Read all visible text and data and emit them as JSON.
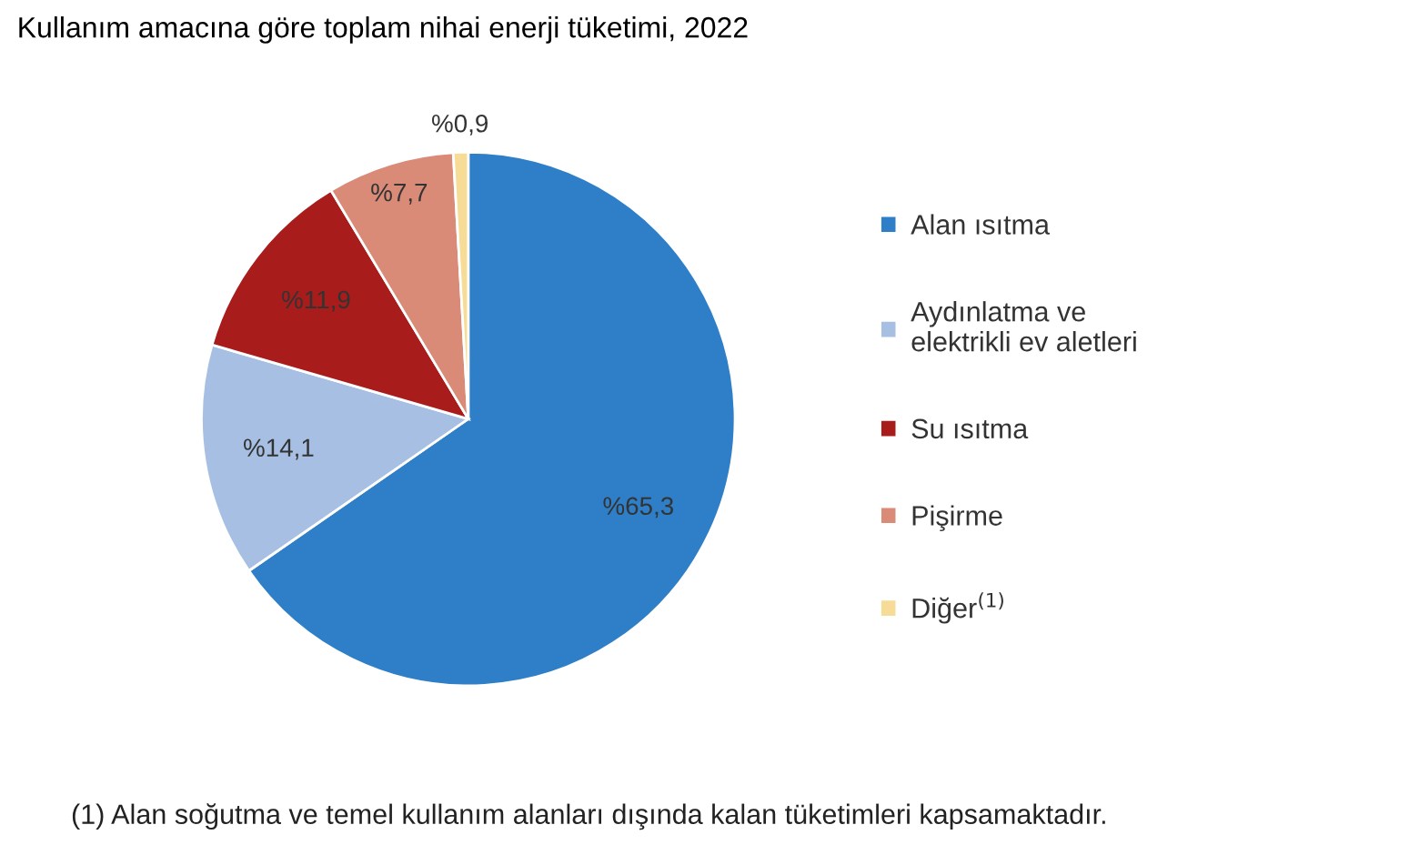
{
  "chart_data": {
    "type": "pie",
    "title": "Kullanım amacına göre toplam nihai enerji tüketimi, 2022",
    "categories": [
      "Alan ısıtma",
      "Aydınlatma ve\nelektrikli ev aletleri",
      "Su ısıtma",
      "Pişirme",
      "Diğer$^{(1)}$"
    ],
    "values": [
      65.3,
      14.1,
      11.9,
      7.7,
      0.9
    ],
    "value_labels": [
      "%65,3",
      "%14,1",
      "%11,9",
      "%7,7",
      "%0,9"
    ],
    "colors": [
      "#2e7fc7",
      "#a6bfe3",
      "#a81c1c",
      "#d98b78",
      "#f7dc97"
    ],
    "legend": "right",
    "annotations": [
      "(1) Alan soğutma ve temel kullanım alanları dışında kalan tüketimleri kapsamaktadır."
    ]
  }
}
